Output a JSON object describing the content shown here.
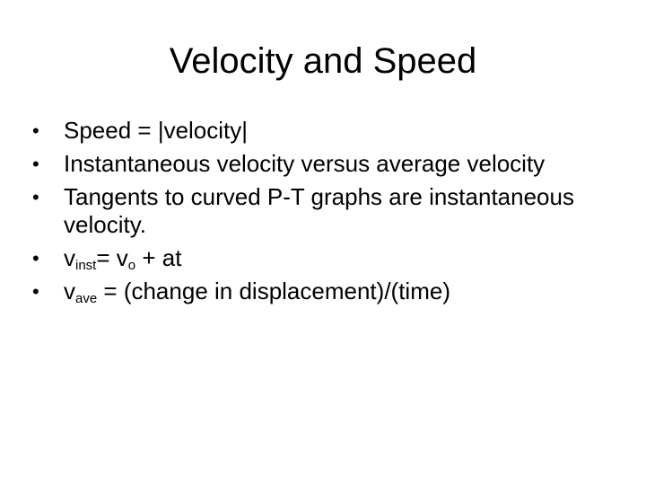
{
  "slide": {
    "title": "Velocity and Speed",
    "bullet_symbol": "•",
    "bullets": {
      "b1": "Speed = |velocity|",
      "b2": "Instantaneous velocity versus average velocity",
      "b3": "Tangents to curved P-T graphs are instantaneous velocity.",
      "b4": {
        "v1": "v",
        "sub1": "inst",
        "mid": "= v",
        "sub2": "o",
        "end": " + at"
      },
      "b5": {
        "v": "v",
        "sub": "ave",
        "end": " = (change in displacement)/(time)"
      }
    }
  }
}
